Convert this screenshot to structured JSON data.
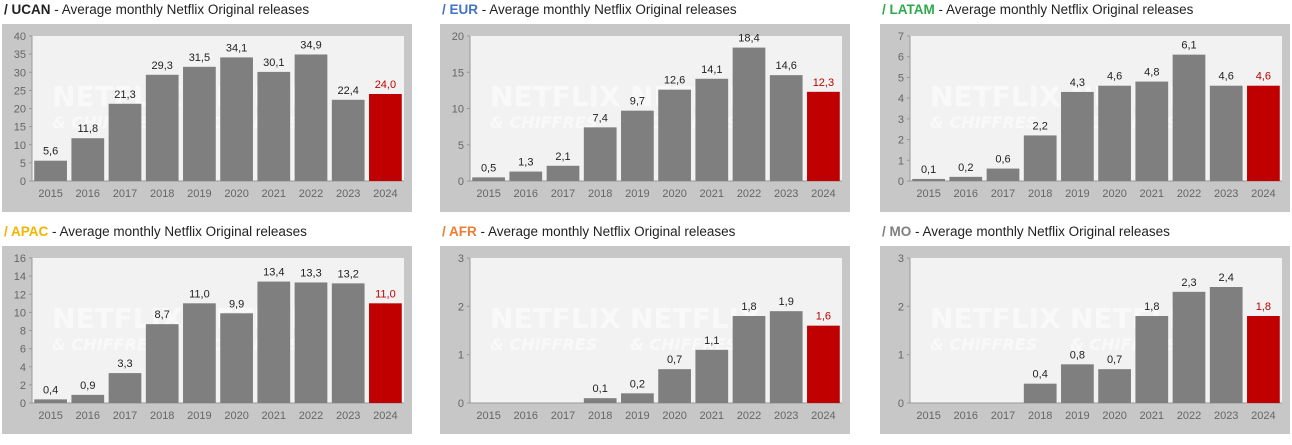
{
  "title_suffix": "Average monthly Netflix Original releases",
  "title_sep": "-",
  "watermark": [
    "NETFLIX",
    "& CHIFFRES"
  ],
  "colors": {
    "bar": "#7f7f7f",
    "highlight": "#c00000",
    "frame": "#c7c7c7",
    "plot": "#f2f2f2"
  },
  "chart_data": [
    {
      "type": "bar",
      "region": "/ UCAN",
      "region_color": "#222222",
      "title": "Average monthly Netflix Original releases",
      "categories": [
        "2015",
        "2016",
        "2017",
        "2018",
        "2019",
        "2020",
        "2021",
        "2022",
        "2023",
        "2024"
      ],
      "values": [
        5.6,
        11.8,
        21.3,
        29.3,
        31.5,
        34.1,
        30.1,
        34.9,
        22.4,
        24.0
      ],
      "labels": [
        "5,6",
        "11,8",
        "21,3",
        "29,3",
        "31,5",
        "34,1",
        "30,1",
        "34,9",
        "22,4",
        "24,0"
      ],
      "ylim": [
        0,
        40
      ],
      "yticks": [
        "0",
        "5",
        "10",
        "15",
        "20",
        "25",
        "30",
        "35",
        "40"
      ],
      "highlight_index": 9
    },
    {
      "type": "bar",
      "region": "/ EUR",
      "region_color": "#4472c4",
      "title": "Average monthly Netflix Original releases",
      "categories": [
        "2015",
        "2016",
        "2017",
        "2018",
        "2019",
        "2020",
        "2021",
        "2022",
        "2023",
        "2024"
      ],
      "values": [
        0.5,
        1.3,
        2.1,
        7.4,
        9.7,
        12.6,
        14.1,
        18.4,
        14.6,
        12.3
      ],
      "labels": [
        "0,5",
        "1,3",
        "2,1",
        "7,4",
        "9,7",
        "12,6",
        "14,1",
        "18,4",
        "14,6",
        "12,3"
      ],
      "ylim": [
        0,
        20
      ],
      "yticks": [
        "0",
        "5",
        "10",
        "15",
        "20"
      ],
      "highlight_index": 9
    },
    {
      "type": "bar",
      "region": "/ LATAM",
      "region_color": "#2eaa4e",
      "title": "Average monthly Netflix Original releases",
      "categories": [
        "2015",
        "2016",
        "2017",
        "2018",
        "2019",
        "2020",
        "2021",
        "2022",
        "2023",
        "2024"
      ],
      "values": [
        0.1,
        0.2,
        0.6,
        2.2,
        4.3,
        4.6,
        4.8,
        6.1,
        4.6,
        4.6
      ],
      "labels": [
        "0,1",
        "0,2",
        "0,6",
        "2,2",
        "4,3",
        "4,6",
        "4,8",
        "6,1",
        "4,6",
        "4,6"
      ],
      "ylim": [
        0,
        7
      ],
      "yticks": [
        "0",
        "1",
        "2",
        "3",
        "4",
        "5",
        "6",
        "7"
      ],
      "highlight_index": 9
    },
    {
      "type": "bar",
      "region": "/ APAC",
      "region_color": "#f4b400",
      "title": "Average monthly Netflix Original releases",
      "categories": [
        "2015",
        "2016",
        "2017",
        "2018",
        "2019",
        "2020",
        "2021",
        "2022",
        "2023",
        "2024"
      ],
      "values": [
        0.4,
        0.9,
        3.3,
        8.7,
        11.0,
        9.9,
        13.4,
        13.3,
        13.2,
        11.0
      ],
      "labels": [
        "0,4",
        "0,9",
        "3,3",
        "8,7",
        "11,0",
        "9,9",
        "13,4",
        "13,3",
        "13,2",
        "11,0"
      ],
      "ylim": [
        0,
        16
      ],
      "yticks": [
        "0",
        "2",
        "4",
        "6",
        "8",
        "10",
        "12",
        "14",
        "16"
      ],
      "highlight_index": 9
    },
    {
      "type": "bar",
      "region": "/ AFR",
      "region_color": "#ed7d31",
      "title": "Average monthly Netflix Original releases",
      "categories": [
        "2015",
        "2016",
        "2017",
        "2018",
        "2019",
        "2020",
        "2021",
        "2022",
        "2023",
        "2024"
      ],
      "values": [
        null,
        null,
        null,
        0.1,
        0.2,
        0.7,
        1.1,
        1.8,
        1.9,
        1.6
      ],
      "labels": [
        "",
        "",
        "",
        "0,1",
        "0,2",
        "0,7",
        "1,1",
        "1,8",
        "1,9",
        "1,6"
      ],
      "ylim": [
        0,
        3
      ],
      "yticks": [
        "0",
        "1",
        "2",
        "3"
      ],
      "highlight_index": 9
    },
    {
      "type": "bar",
      "region": "/ MO",
      "region_color": "#7f7f7f",
      "title": "Average monthly Netflix Original releases",
      "categories": [
        "2015",
        "2016",
        "2017",
        "2018",
        "2019",
        "2020",
        "2021",
        "2022",
        "2023",
        "2024"
      ],
      "values": [
        null,
        null,
        null,
        0.4,
        0.8,
        0.7,
        1.8,
        2.3,
        2.4,
        1.8
      ],
      "labels": [
        "",
        "",
        "",
        "0,4",
        "0,8",
        "0,7",
        "1,8",
        "2,3",
        "2,4",
        "1,8"
      ],
      "ylim": [
        0,
        3
      ],
      "yticks": [
        "0",
        "1",
        "2",
        "3"
      ],
      "highlight_index": 9
    }
  ]
}
